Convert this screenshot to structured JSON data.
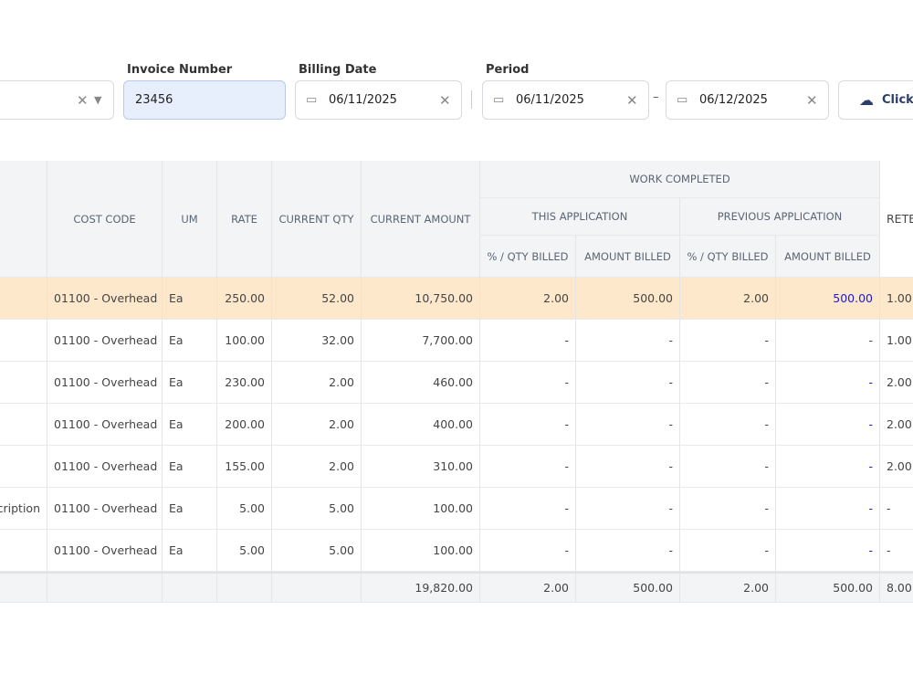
{
  "form": {
    "invoice_number": {
      "label": "Invoice Number",
      "value": "23456"
    },
    "billing_date": {
      "label": "Billing Date",
      "value": "06/11/2025"
    },
    "period": {
      "label": "Period",
      "start": "06/11/2025",
      "separator": "–",
      "end": "06/12/2025"
    },
    "upload": "Click"
  },
  "table": {
    "group_header": "WORK COMPLETED",
    "subgroups": [
      "THIS APPLICATION",
      "PREVIOUS APPLICATION"
    ],
    "columns": [
      "COST CODE",
      "UM",
      "RATE",
      "CURRENT QTY",
      "CURRENT AMOUNT",
      "% / QTY BILLED",
      "AMOUNT BILLED",
      "% / QTY BILLED",
      "AMOUNT BILLED",
      "RETE"
    ],
    "rows": [
      {
        "cells": [
          "01100 - Overhead",
          "Ea",
          "250.00",
          "52.00",
          "10,750.00",
          "2.00",
          "500.00",
          "2.00",
          "500.00",
          "1.00"
        ]
      },
      {
        "cells": [
          "01100 - Overhead",
          "Ea",
          "100.00",
          "32.00",
          "7,700.00",
          "-",
          "-",
          "-",
          "-",
          "1.00"
        ]
      },
      {
        "cells": [
          "01100 - Overhead",
          "Ea",
          "230.00",
          "2.00",
          "460.00",
          "-",
          "-",
          "-",
          "-",
          "2.00"
        ]
      },
      {
        "cells": [
          "01100 - Overhead",
          "Ea",
          "200.00",
          "2.00",
          "400.00",
          "-",
          "-",
          "-",
          "-",
          "2.00"
        ]
      },
      {
        "cells": [
          "01100 - Overhead",
          "Ea",
          "155.00",
          "2.00",
          "310.00",
          "-",
          "-",
          "-",
          "-",
          "2.00"
        ]
      },
      {
        "description": "cription",
        "cells": [
          "01100 - Overhead",
          "Ea",
          "5.00",
          "5.00",
          "100.00",
          "-",
          "-",
          "-",
          "-",
          "-"
        ]
      },
      {
        "cells": [
          "01100 - Overhead",
          "Ea",
          "5.00",
          "5.00",
          "100.00",
          "-",
          "-",
          "-",
          "-",
          "-"
        ]
      }
    ],
    "totals": [
      "19,820.00",
      "2.00",
      "500.00",
      "2.00",
      "500.00",
      "8.00"
    ]
  }
}
